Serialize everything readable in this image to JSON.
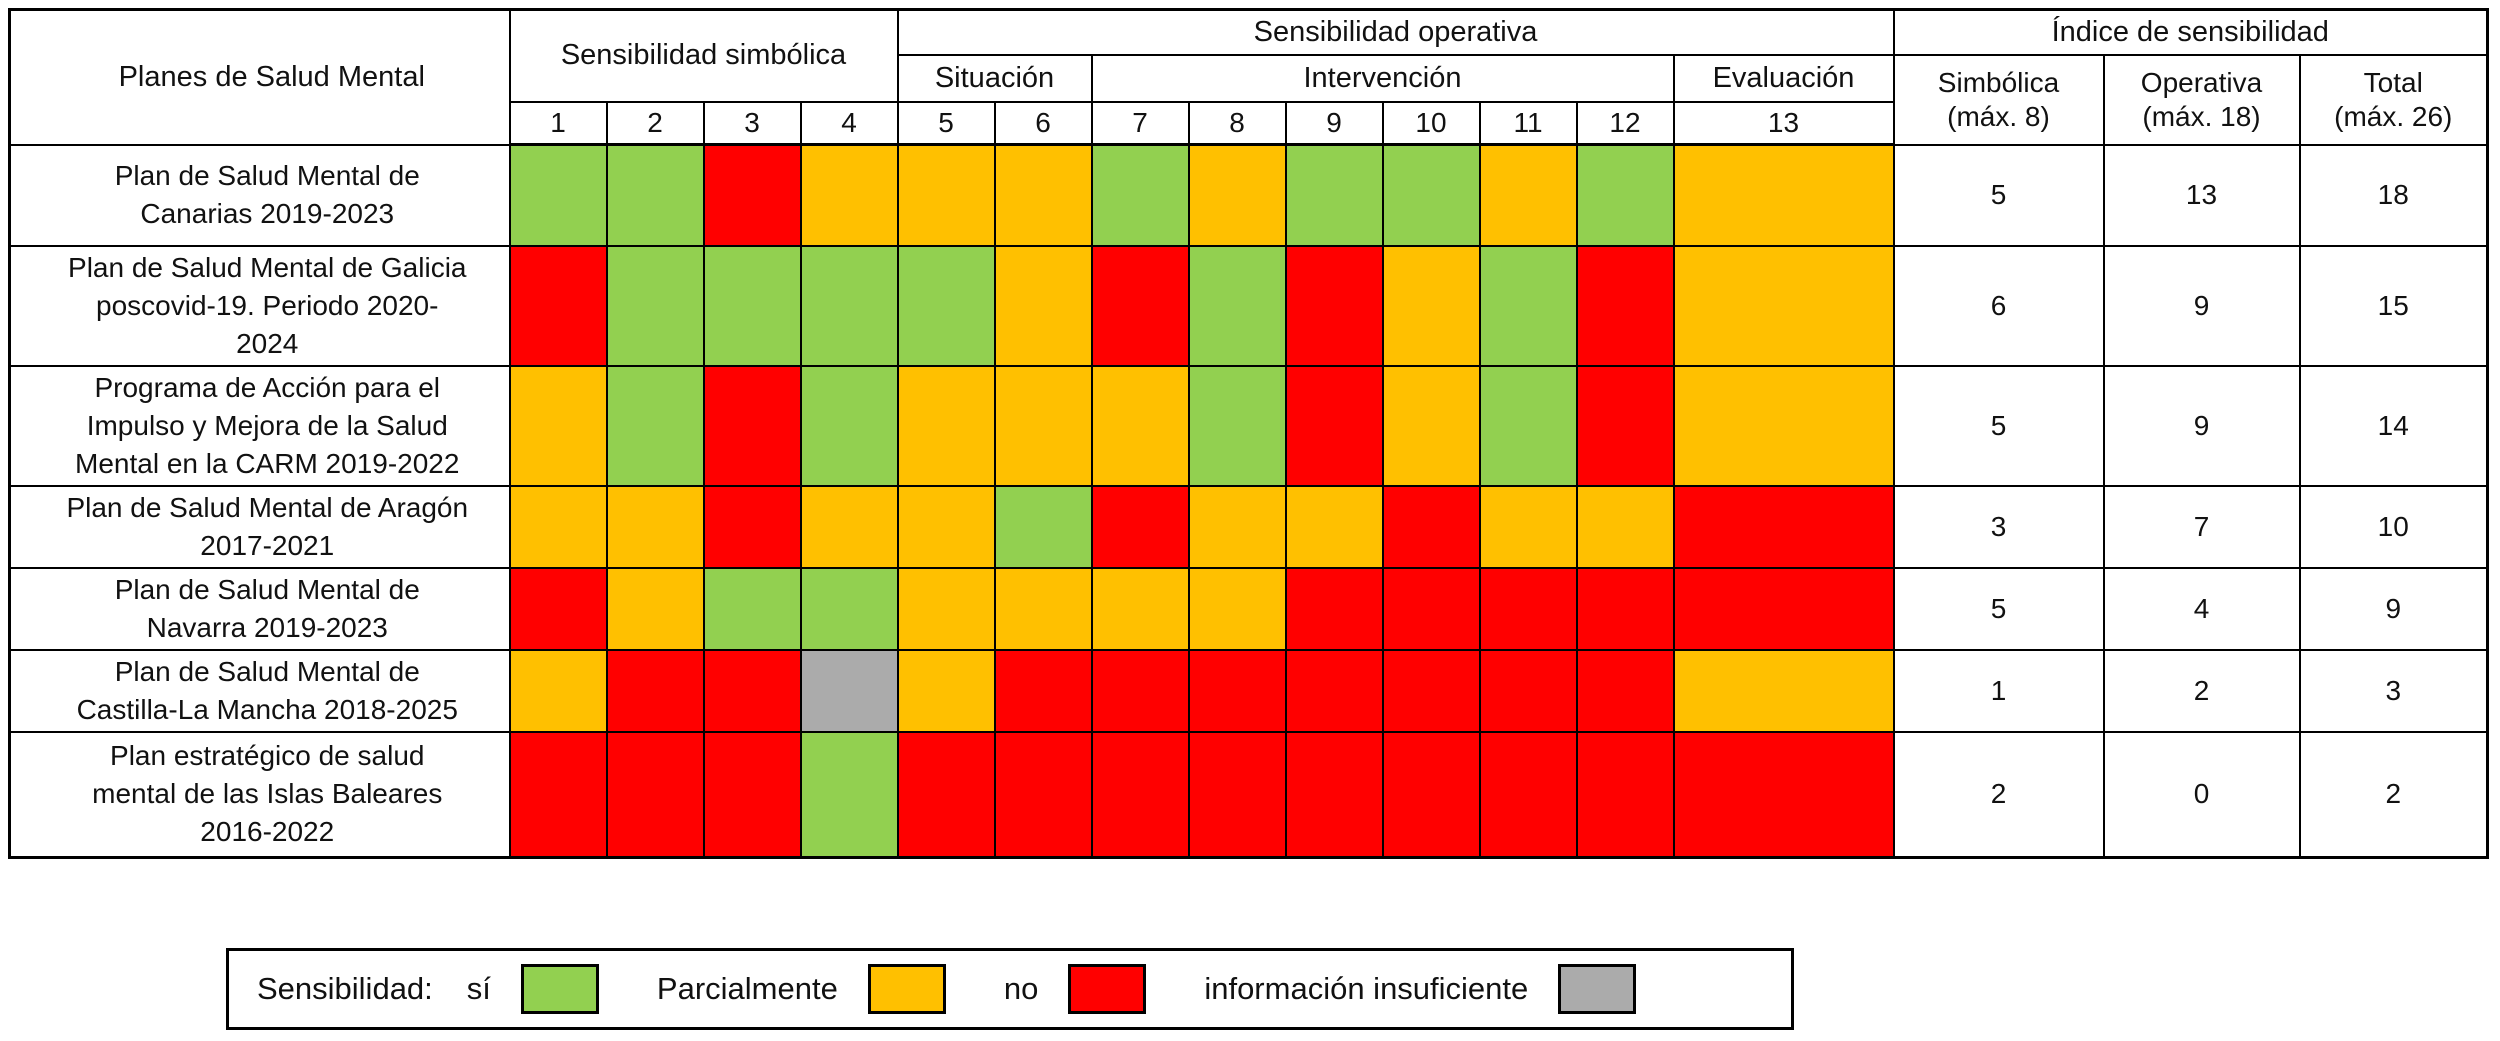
{
  "colors": {
    "si": "#92D050",
    "parcialmente": "#FFC000",
    "no": "#FF0000",
    "insuficiente": "#ABABAB"
  },
  "chart_data": {
    "type": "heatmap",
    "row_header": "Planes de Salud Mental",
    "col_groups": {
      "simbolica": "Sensibilidad simbólica",
      "operativa": "Sensibilidad operativa",
      "indice": "Índice de sensibilidad"
    },
    "subgroups": {
      "situacion": "Situación",
      "intervencion": "Intervención",
      "evaluacion": "Evaluación"
    },
    "index_cols": [
      "Simbólica\n(máx. 8)",
      "Operativa\n(máx. 18)",
      "Total\n(máx. 26)"
    ],
    "criteria": [
      "1",
      "2",
      "3",
      "4",
      "5",
      "6",
      "7",
      "8",
      "9",
      "10",
      "11",
      "12",
      "13"
    ],
    "value_legend": {
      "si": "sí",
      "parcialmente": "Parcialmente",
      "no": "no",
      "insuficiente": "información insuficiente"
    },
    "rows": [
      {
        "name": "Plan de Salud Mental de\nCanarias 2019-2023",
        "cells": [
          "si",
          "si",
          "no",
          "parcialmente",
          "parcialmente",
          "parcialmente",
          "si",
          "parcialmente",
          "si",
          "si",
          "parcialmente",
          "si",
          "parcialmente"
        ],
        "simbolica": "5",
        "operativa": "13",
        "total": "18"
      },
      {
        "name": "Plan de Salud Mental de Galicia\nposcovid-19. Periodo 2020-\n2024",
        "cells": [
          "no",
          "si",
          "si",
          "si",
          "si",
          "parcialmente",
          "no",
          "si",
          "no",
          "parcialmente",
          "si",
          "no",
          "parcialmente"
        ],
        "simbolica": "6",
        "operativa": "9",
        "total": "15"
      },
      {
        "name": "Programa de Acción para el\nImpulso y Mejora de la Salud\nMental en la CARM 2019-2022",
        "cells": [
          "parcialmente",
          "si",
          "no",
          "si",
          "parcialmente",
          "parcialmente",
          "parcialmente",
          "si",
          "no",
          "parcialmente",
          "si",
          "no",
          "parcialmente"
        ],
        "simbolica": "5",
        "operativa": "9",
        "total": "14"
      },
      {
        "name": "Plan de Salud Mental de Aragón\n2017-2021",
        "cells": [
          "parcialmente",
          "parcialmente",
          "no",
          "parcialmente",
          "parcialmente",
          "si",
          "no",
          "parcialmente",
          "parcialmente",
          "no",
          "parcialmente",
          "parcialmente",
          "no"
        ],
        "simbolica": "3",
        "operativa": "7",
        "total": "10"
      },
      {
        "name": "Plan de Salud Mental de\nNavarra 2019-2023",
        "cells": [
          "no",
          "parcialmente",
          "si",
          "si",
          "parcialmente",
          "parcialmente",
          "parcialmente",
          "parcialmente",
          "no",
          "no",
          "no",
          "no",
          "no"
        ],
        "simbolica": "5",
        "operativa": "4",
        "total": "9"
      },
      {
        "name": "Plan de Salud Mental de\nCastilla-La Mancha 2018-2025",
        "cells": [
          "parcialmente",
          "no",
          "no",
          "insuficiente",
          "parcialmente",
          "no",
          "no",
          "no",
          "no",
          "no",
          "no",
          "no",
          "parcialmente"
        ],
        "simbolica": "1",
        "operativa": "2",
        "total": "3"
      },
      {
        "name": "Plan estratégico de salud\nmental de las Islas Baleares\n2016-2022",
        "cells": [
          "no",
          "no",
          "no",
          "si",
          "no",
          "no",
          "no",
          "no",
          "no",
          "no",
          "no",
          "no",
          "no"
        ],
        "simbolica": "2",
        "operativa": "0",
        "total": "2"
      }
    ]
  },
  "legend": {
    "title": "Sensibilidad:",
    "items": [
      {
        "label": "sí",
        "color_key": "si"
      },
      {
        "label": "Parcialmente",
        "color_key": "parcialmente"
      },
      {
        "label": "no",
        "color_key": "no"
      },
      {
        "label": "información insuficiente",
        "color_key": "insuficiente"
      }
    ]
  }
}
